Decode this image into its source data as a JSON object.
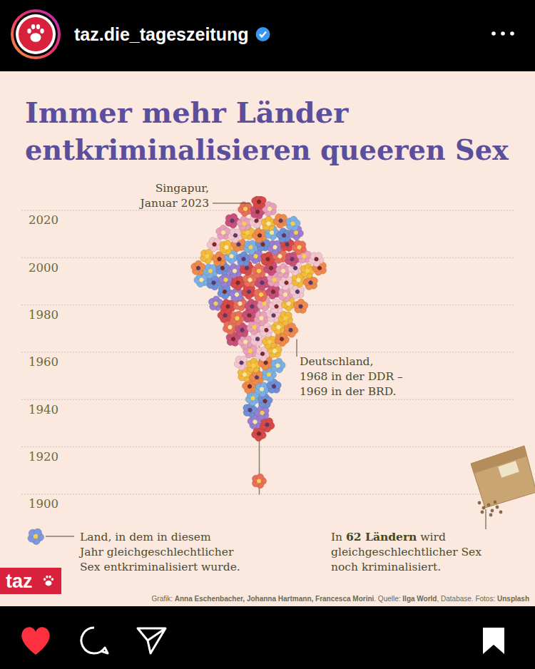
{
  "post": {
    "account": "taz.die_tageszeitung"
  },
  "chart_data": {
    "type": "pictogram",
    "title": [
      "Immer mehr Länder",
      "entkriminalisieren queeren Sex"
    ],
    "orientation": "horizontal",
    "x": [
      1905,
      1925,
      1930,
      1935,
      1940,
      1945,
      1950,
      1955,
      1960,
      1965,
      1970,
      1975,
      1980,
      1985,
      1990,
      1995,
      2000,
      2005,
      2010,
      2015,
      2020,
      2023
    ],
    "values": [
      1,
      1,
      2,
      2,
      2,
      3,
      3,
      4,
      3,
      5,
      6,
      6,
      8,
      7,
      10,
      11,
      10,
      8,
      7,
      6,
      3,
      1
    ],
    "ylim": [
      1900,
      2026
    ],
    "yticks": [
      1900,
      1920,
      1940,
      1960,
      1980,
      2000,
      2020
    ],
    "grid": true,
    "tick_labels": "y",
    "annotations": [
      {
        "year": 2023,
        "text": [
          "Singapur,",
          "Januar 2023"
        ]
      },
      {
        "year": 1968,
        "text": [
          "Deutschland,",
          "1968 in der DDR –",
          "1969 in der BRD."
        ]
      }
    ],
    "symbol_note": [
      "Land, in dem in diesem",
      "Jahr gleichgeschlechtlicher",
      "Sex entkriminalisiert wurde."
    ],
    "note": [
      [
        "In ",
        "62 Ländern",
        " wird"
      ],
      [
        "gleichgeschlechtlicher Sex"
      ],
      [
        "noch kriminalisiert."
      ]
    ],
    "credits": [
      "Grafik: ",
      "Anna Eschenbacher, Johanna Hartmann, Francesca Morini",
      ". Quelle: ",
      "Ilga World",
      ", Database. Fotos: ",
      "Unsplash"
    ],
    "logo": "taz"
  }
}
